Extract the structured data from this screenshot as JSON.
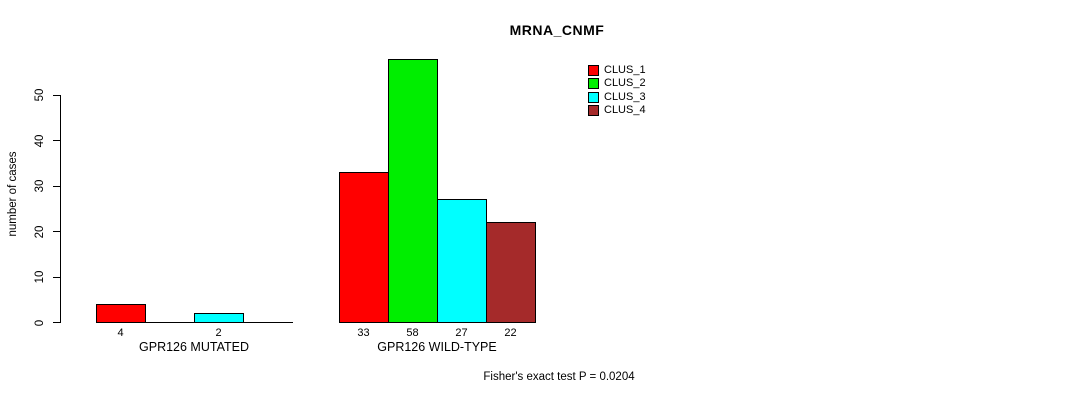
{
  "chart_data": {
    "type": "bar",
    "title": "MRNA_CNMF",
    "ylabel": "number of cases",
    "xlabel": "",
    "ylim": [
      0,
      58
    ],
    "yticks": [
      0,
      10,
      20,
      30,
      40,
      50
    ],
    "grid": false,
    "legend_position": "top-right",
    "series_names": [
      "CLUS_1",
      "CLUS_2",
      "CLUS_3",
      "CLUS_4"
    ],
    "legend": [
      {
        "label": "CLUS_1",
        "color": "#FF0000"
      },
      {
        "label": "CLUS_2",
        "color": "#00EE00"
      },
      {
        "label": "CLUS_3",
        "color": "#00FFFF"
      },
      {
        "label": "CLUS_4",
        "color": "#A52A2A"
      }
    ],
    "groups": [
      {
        "label": "GPR126 MUTATED",
        "values": [
          4,
          0,
          2,
          0
        ],
        "bar_labels": [
          "4",
          "",
          "2",
          ""
        ]
      },
      {
        "label": "GPR126 WILD-TYPE",
        "values": [
          33,
          58,
          27,
          22
        ],
        "bar_labels": [
          "33",
          "58",
          "27",
          "22"
        ]
      }
    ],
    "annotation": "Fisher's exact test P = 0.0204"
  },
  "colors": {
    "axis": "#000000",
    "background": "#ffffff",
    "clus1": "#FF0000",
    "clus2": "#00EE00",
    "clus3": "#00FFFF",
    "clus4": "#A52A2A"
  }
}
